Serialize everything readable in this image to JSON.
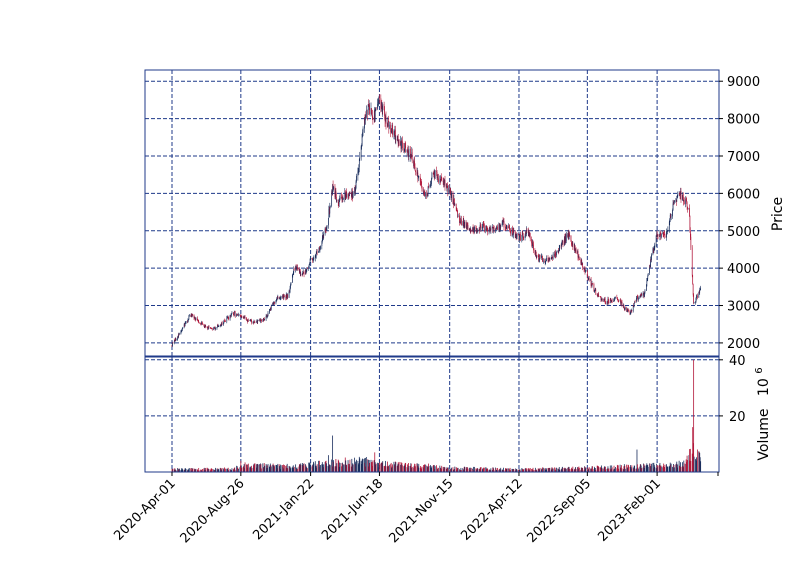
{
  "chart_data": {
    "type": "candlestick",
    "style": {
      "up_color": "#1b2f5e",
      "down_color": "#b2183a",
      "grid_color": "#1f3a8a",
      "frame_color": "#1f3a8a"
    },
    "price_panel": {
      "ylabel": "Price",
      "ylim": [
        1650,
        9300
      ],
      "yticks": [
        2000,
        3000,
        4000,
        5000,
        6000,
        7000,
        8000,
        9000
      ],
      "ytick_labels": [
        "2000",
        "3000",
        "4000",
        "5000",
        "6000",
        "7000",
        "8000",
        "9000"
      ]
    },
    "volume_panel": {
      "ylabel": "Volume",
      "scale_label": "10",
      "scale_exponent": "6",
      "ylim": [
        0,
        41
      ],
      "yticks": [
        20,
        40
      ],
      "ytick_labels": [
        "20",
        "40"
      ]
    },
    "xaxis": {
      "ticks": [
        "2020-Apr-01",
        "2020-Aug-26",
        "2021-Jan-22",
        "2021-Jun-18",
        "2021-Nov-15",
        "2022-Apr-12",
        "2022-Sep-05",
        "2023-Feb-01"
      ],
      "grid": true
    },
    "price_path": [
      [
        "2020-Apr-01",
        1950
      ],
      [
        "2020-Apr-20",
        2300
      ],
      [
        "2020-May-10",
        2750
      ],
      [
        "2020-Jun-01",
        2550
      ],
      [
        "2020-Jun-25",
        2350
      ],
      [
        "2020-Jul-20",
        2550
      ],
      [
        "2020-Aug-10",
        2800
      ],
      [
        "2020-Aug-26",
        2700
      ],
      [
        "2020-Sep-20",
        2550
      ],
      [
        "2020-Oct-15",
        2600
      ],
      [
        "2020-Nov-10",
        3200
      ],
      [
        "2020-Dec-05",
        3250
      ],
      [
        "2020-Dec-20",
        4100
      ],
      [
        "2021-Jan-05",
        3800
      ],
      [
        "2021-Jan-22",
        4200
      ],
      [
        "2021-Feb-10",
        4500
      ],
      [
        "2021-Feb-28",
        5300
      ],
      [
        "2021-Mar-10",
        6200
      ],
      [
        "2021-Mar-20",
        5800
      ],
      [
        "2021-Apr-10",
        6000
      ],
      [
        "2021-Apr-25",
        6000
      ],
      [
        "2021-May-05",
        6800
      ],
      [
        "2021-May-15",
        7800
      ],
      [
        "2021-May-25",
        8300
      ],
      [
        "2021-Jun-05",
        8000
      ],
      [
        "2021-Jun-18",
        8500
      ],
      [
        "2021-Jul-01",
        8000
      ],
      [
        "2021-Jul-15",
        7700
      ],
      [
        "2021-Aug-05",
        7300
      ],
      [
        "2021-Aug-25",
        7000
      ],
      [
        "2021-Sep-15",
        6200
      ],
      [
        "2021-Sep-25",
        5900
      ],
      [
        "2021-Oct-10",
        6500
      ],
      [
        "2021-Oct-25",
        6400
      ],
      [
        "2021-Nov-15",
        6100
      ],
      [
        "2021-Dec-05",
        5300
      ],
      [
        "2022-Jan-05",
        5000
      ],
      [
        "2022-Jan-25",
        5100
      ],
      [
        "2022-Feb-15",
        5000
      ],
      [
        "2022-Mar-10",
        5200
      ],
      [
        "2022-Apr-12",
        4800
      ],
      [
        "2022-May-01",
        5000
      ],
      [
        "2022-May-20",
        4300
      ],
      [
        "2022-Jun-10",
        4200
      ],
      [
        "2022-Jul-01",
        4400
      ],
      [
        "2022-Jul-25",
        4900
      ],
      [
        "2022-Aug-15",
        4400
      ],
      [
        "2022-Sep-05",
        3800
      ],
      [
        "2022-Sep-25",
        3300
      ],
      [
        "2022-Oct-15",
        3100
      ],
      [
        "2022-Nov-05",
        3200
      ],
      [
        "2022-Nov-20",
        3000
      ],
      [
        "2022-Dec-05",
        2800
      ],
      [
        "2022-Dec-20",
        3200
      ],
      [
        "2023-Jan-05",
        3300
      ],
      [
        "2023-Jan-20",
        4300
      ],
      [
        "2023-Feb-01",
        4900
      ],
      [
        "2023-Feb-20",
        4900
      ],
      [
        "2023-Mar-05",
        5600
      ],
      [
        "2023-Mar-20",
        6000
      ],
      [
        "2023-Apr-01",
        5800
      ],
      [
        "2023-Apr-10",
        5600
      ],
      [
        "2023-Apr-20",
        3000
      ],
      [
        "2023-May-05",
        3500
      ]
    ],
    "volume_path": [
      [
        "2020-Apr-01",
        1.0
      ],
      [
        "2020-Aug-10",
        1.2
      ],
      [
        "2020-Aug-26",
        2.5
      ],
      [
        "2020-Dec-20",
        2.0
      ],
      [
        "2021-Mar-10",
        3.5
      ],
      [
        "2021-May-15",
        4.0
      ],
      [
        "2021-Jun-18",
        3.0
      ],
      [
        "2021-Nov-15",
        1.5
      ],
      [
        "2022-Apr-12",
        1.0
      ],
      [
        "2022-Sep-05",
        1.5
      ],
      [
        "2022-Nov-20",
        2.0
      ],
      [
        "2023-Feb-01",
        2.5
      ],
      [
        "2023-Apr-01",
        3.0
      ],
      [
        "2023-Apr-20",
        9.0
      ],
      [
        "2023-May-05",
        5.0
      ]
    ],
    "volume_spikes": [
      [
        "2020-Aug-26",
        4
      ],
      [
        "2020-Dec-20",
        4.5
      ],
      [
        "2021-Feb-10",
        4
      ],
      [
        "2021-Mar-01",
        6
      ],
      [
        "2021-Mar-10",
        13
      ],
      [
        "2021-Jun-05",
        12
      ],
      [
        "2021-Jun-08",
        7
      ],
      [
        "2021-Oct-01",
        3
      ],
      [
        "2022-Nov-20",
        7
      ],
      [
        "2022-Dec-20",
        8
      ],
      [
        "2023-Feb-15",
        3
      ],
      [
        "2023-Apr-10",
        6
      ],
      [
        "2023-Apr-18",
        16
      ],
      [
        "2023-Apr-20",
        40
      ],
      [
        "2023-Apr-22",
        10
      ]
    ]
  }
}
